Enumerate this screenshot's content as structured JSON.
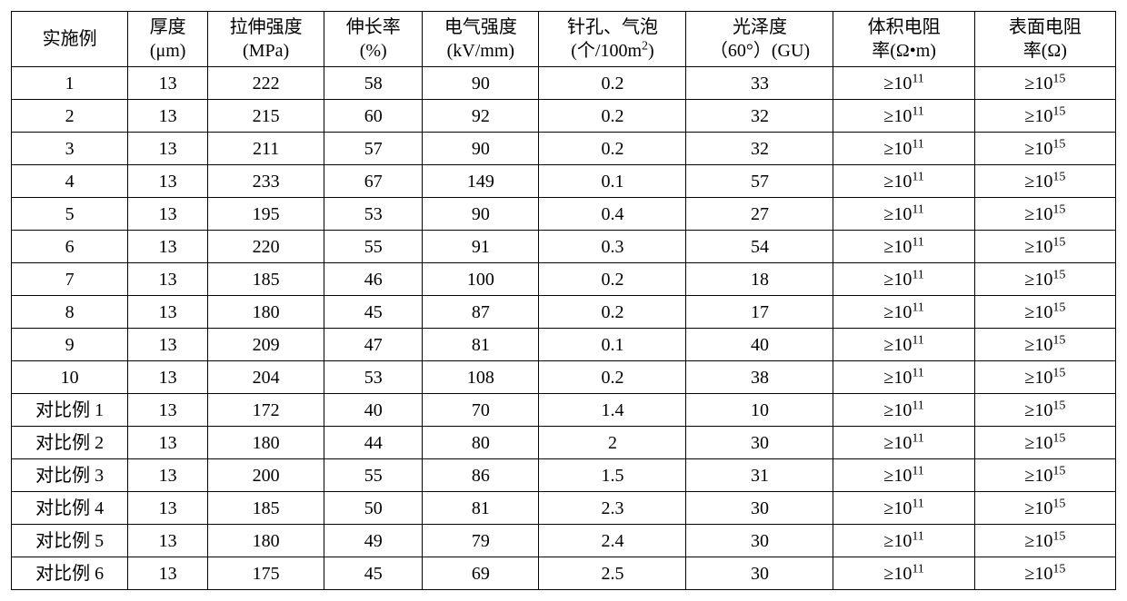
{
  "table": {
    "background_color": "#ffffff",
    "border_color": "#000000",
    "font_family": "SimSun",
    "header_fontsize": 20,
    "cell_fontsize": 20,
    "columns": [
      {
        "label_line1": "实施例",
        "label_line2": "",
        "width_pct": 9.5
      },
      {
        "label_line1": "厚度",
        "label_line2": "(μm)",
        "width_pct": 6.5
      },
      {
        "label_line1": "拉伸强度",
        "label_line2": "(MPa)",
        "width_pct": 9.5
      },
      {
        "label_line1": "伸长率",
        "label_line2": "(%)",
        "width_pct": 8
      },
      {
        "label_line1": "电气强度",
        "label_line2": "(kV/mm)",
        "width_pct": 9.5
      },
      {
        "label_line1": "针孔、气泡",
        "label_line2_pre": "(个/100m",
        "label_line2_sup": "2",
        "label_line2_post": ")",
        "width_pct": 12
      },
      {
        "label_line1": "光泽度",
        "label_line2": "（60°）(GU)",
        "width_pct": 12
      },
      {
        "label_line1": "体积电阻",
        "label_line2": "率(Ω•m)",
        "width_pct": 11.5
      },
      {
        "label_line1": "表面电阻",
        "label_line2": "率(Ω)",
        "width_pct": 11.5
      }
    ],
    "resist_prefix": "≥10",
    "vol_resist_exp": "11",
    "surf_resist_exp": "15",
    "rows": [
      {
        "c0": "1",
        "c1": "13",
        "c2": "222",
        "c3": "58",
        "c4": "90",
        "c5": "0.2",
        "c6": "33"
      },
      {
        "c0": "2",
        "c1": "13",
        "c2": "215",
        "c3": "60",
        "c4": "92",
        "c5": "0.2",
        "c6": "32"
      },
      {
        "c0": "3",
        "c1": "13",
        "c2": "211",
        "c3": "57",
        "c4": "90",
        "c5": "0.2",
        "c6": "32"
      },
      {
        "c0": "4",
        "c1": "13",
        "c2": "233",
        "c3": "67",
        "c4": "149",
        "c5": "0.1",
        "c6": "57"
      },
      {
        "c0": "5",
        "c1": "13",
        "c2": "195",
        "c3": "53",
        "c4": "90",
        "c5": "0.4",
        "c6": "27"
      },
      {
        "c0": "6",
        "c1": "13",
        "c2": "220",
        "c3": "55",
        "c4": "91",
        "c5": "0.3",
        "c6": "54"
      },
      {
        "c0": "7",
        "c1": "13",
        "c2": "185",
        "c3": "46",
        "c4": "100",
        "c5": "0.2",
        "c6": "18"
      },
      {
        "c0": "8",
        "c1": "13",
        "c2": "180",
        "c3": "45",
        "c4": "87",
        "c5": "0.2",
        "c6": "17"
      },
      {
        "c0": "9",
        "c1": "13",
        "c2": "209",
        "c3": "47",
        "c4": "81",
        "c5": "0.1",
        "c6": "40"
      },
      {
        "c0": "10",
        "c1": "13",
        "c2": "204",
        "c3": "53",
        "c4": "108",
        "c5": "0.2",
        "c6": "38"
      },
      {
        "c0": "对比例 1",
        "c1": "13",
        "c2": "172",
        "c3": "40",
        "c4": "70",
        "c5": "1.4",
        "c6": "10"
      },
      {
        "c0": "对比例 2",
        "c1": "13",
        "c2": "180",
        "c3": "44",
        "c4": "80",
        "c5": "2",
        "c6": "30"
      },
      {
        "c0": "对比例 3",
        "c1": "13",
        "c2": "200",
        "c3": "55",
        "c4": "86",
        "c5": "1.5",
        "c6": "31"
      },
      {
        "c0": "对比例 4",
        "c1": "13",
        "c2": "185",
        "c3": "50",
        "c4": "81",
        "c5": "2.3",
        "c6": "30"
      },
      {
        "c0": "对比例 5",
        "c1": "13",
        "c2": "180",
        "c3": "49",
        "c4": "79",
        "c5": "2.4",
        "c6": "30"
      },
      {
        "c0": "对比例 6",
        "c1": "13",
        "c2": "175",
        "c3": "45",
        "c4": "69",
        "c5": "2.5",
        "c6": "30"
      }
    ]
  }
}
